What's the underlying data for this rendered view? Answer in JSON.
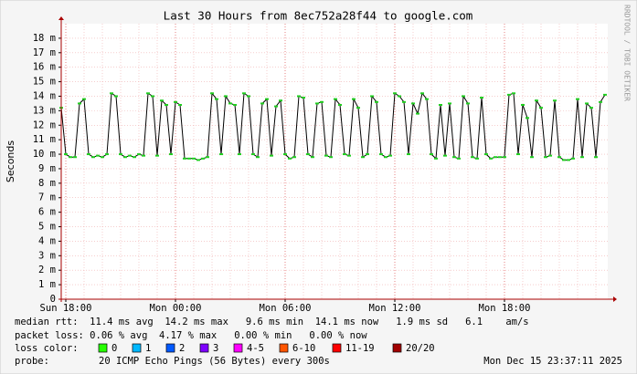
{
  "chart_data": {
    "type": "line",
    "title": "Last 30 Hours from 8ec752a28f44 to google.com",
    "y_label": "Seconds",
    "watermark": "RRDTOOL / TOBI OETIKER",
    "x": [
      17.75,
      18,
      18.25,
      18.5,
      18.75,
      19,
      19.25,
      19.5,
      19.75,
      20,
      20.25,
      20.5,
      20.75,
      21,
      21.25,
      21.5,
      21.75,
      22,
      22.25,
      22.5,
      22.75,
      23,
      23.25,
      23.5,
      23.75,
      24,
      24.25,
      24.5,
      24.75,
      25,
      25.25,
      25.5,
      25.75,
      26,
      26.25,
      26.5,
      26.75,
      27,
      27.25,
      27.5,
      27.75,
      28,
      28.25,
      28.5,
      28.75,
      29,
      29.25,
      29.5,
      29.75,
      30,
      30.25,
      30.5,
      30.75,
      31,
      31.25,
      31.5,
      31.75,
      32,
      32.25,
      32.5,
      32.75,
      33,
      33.25,
      33.5,
      33.75,
      34,
      34.25,
      34.5,
      34.75,
      35,
      35.25,
      35.5,
      35.75,
      36,
      36.25,
      36.5,
      36.75,
      37,
      37.25,
      37.5,
      37.75,
      38,
      38.25,
      38.5,
      38.75,
      39,
      39.25,
      39.5,
      39.75,
      40,
      40.25,
      40.5,
      40.75,
      41,
      41.25,
      41.5,
      41.75,
      42,
      42.25,
      42.5,
      42.75,
      43,
      43.25,
      43.5,
      43.75,
      44,
      44.25,
      44.5,
      44.75,
      45,
      45.25,
      45.5,
      45.75,
      46,
      46.25,
      46.5,
      46.75,
      47,
      47.25,
      47.5
    ],
    "series": [
      {
        "name": "median rtt",
        "color": "#1fcf1f",
        "values": [
          13.2,
          10,
          9.8,
          9.8,
          13.5,
          13.8,
          10,
          9.8,
          9.9,
          9.8,
          10,
          14.2,
          14,
          10,
          9.8,
          9.9,
          9.8,
          10,
          9.9,
          14.2,
          14,
          9.9,
          13.7,
          13.4,
          10,
          13.6,
          13.4,
          9.7,
          9.7,
          9.7,
          9.6,
          9.7,
          9.8,
          14.2,
          13.8,
          10,
          14,
          13.5,
          13.4,
          10,
          14.2,
          14,
          10,
          9.8,
          13.5,
          13.8,
          9.9,
          13.3,
          13.7,
          10,
          9.7,
          9.8,
          14,
          13.9,
          10,
          9.8,
          13.5,
          13.6,
          9.9,
          9.8,
          13.8,
          13.4,
          10,
          9.9,
          13.8,
          13.2,
          9.8,
          10,
          14,
          13.6,
          10,
          9.8,
          9.9,
          14.2,
          14,
          13.6,
          10,
          13.5,
          12.8,
          14.2,
          13.8,
          10,
          9.7,
          13.4,
          9.9,
          13.5,
          9.8,
          9.7,
          14,
          13.5,
          9.8,
          9.7,
          13.9,
          10,
          9.7,
          9.8,
          9.8,
          9.8,
          14.1,
          14.2,
          10,
          13.4,
          12.5,
          9.8,
          13.7,
          13.2,
          9.8,
          9.9,
          13.7,
          9.8,
          9.6,
          9.6,
          9.7,
          13.8,
          9.8,
          13.5,
          13.2,
          9.8,
          13.6,
          14.1
        ]
      }
    ],
    "xlim": [
      17.75,
      47.65
    ],
    "ylim": [
      0,
      19
    ],
    "xticks": [
      {
        "value": 18,
        "label": "Sun 18:00"
      },
      {
        "value": 24,
        "label": "Mon 00:00"
      },
      {
        "value": 30,
        "label": "Mon 06:00"
      },
      {
        "value": 36,
        "label": "Mon 12:00"
      },
      {
        "value": 42,
        "label": "Mon 18:00"
      }
    ],
    "yticks": [
      0,
      {
        "value": 1,
        "label": "1 m"
      },
      {
        "value": 2,
        "label": "2 m"
      },
      {
        "value": 3,
        "label": "3 m"
      },
      {
        "value": 4,
        "label": "4 m"
      },
      {
        "value": 5,
        "label": "5 m"
      },
      {
        "value": 6,
        "label": "6 m"
      },
      {
        "value": 7,
        "label": "7 m"
      },
      {
        "value": 8,
        "label": "8 m"
      },
      {
        "value": 9,
        "label": "9 m"
      },
      {
        "value": 10,
        "label": "10 m"
      },
      {
        "value": 11,
        "label": "11 m"
      },
      {
        "value": 12,
        "label": "12 m"
      },
      {
        "value": 13,
        "label": "13 m"
      },
      {
        "value": 14,
        "label": "14 m"
      },
      {
        "value": 15,
        "label": "15 m"
      },
      {
        "value": 16,
        "label": "16 m"
      },
      {
        "value": 17,
        "label": "17 m"
      },
      {
        "value": 18,
        "label": "18 m"
      }
    ],
    "grid": true,
    "stats": [
      "median rtt:  11.4 ms avg  14.2 ms max   9.6 ms min  14.1 ms now   1.9 ms sd   6.1    am/s",
      "packet loss: 0.06 % avg  4.17 % max   0.00 % min   0.00 % now"
    ],
    "loss_title": "loss color:",
    "loss_colors": [
      {
        "label": "0",
        "color": "#26ff00"
      },
      {
        "label": "1",
        "color": "#00b8ff"
      },
      {
        "label": "2",
        "color": "#0059ff"
      },
      {
        "label": "3",
        "color": "#7e00ff"
      },
      {
        "label": "4-5",
        "color": "#ff00ff"
      },
      {
        "label": "6-10",
        "color": "#ff5500"
      },
      {
        "label": "11-19",
        "color": "#ff0000"
      },
      {
        "label": "20/20",
        "color": "#a10000"
      }
    ],
    "probe_title": "probe:",
    "probe": "20 ICMP Echo Pings (56 Bytes) every 300s",
    "timestamp": "Mon Dec 15 23:37:11 2025"
  }
}
